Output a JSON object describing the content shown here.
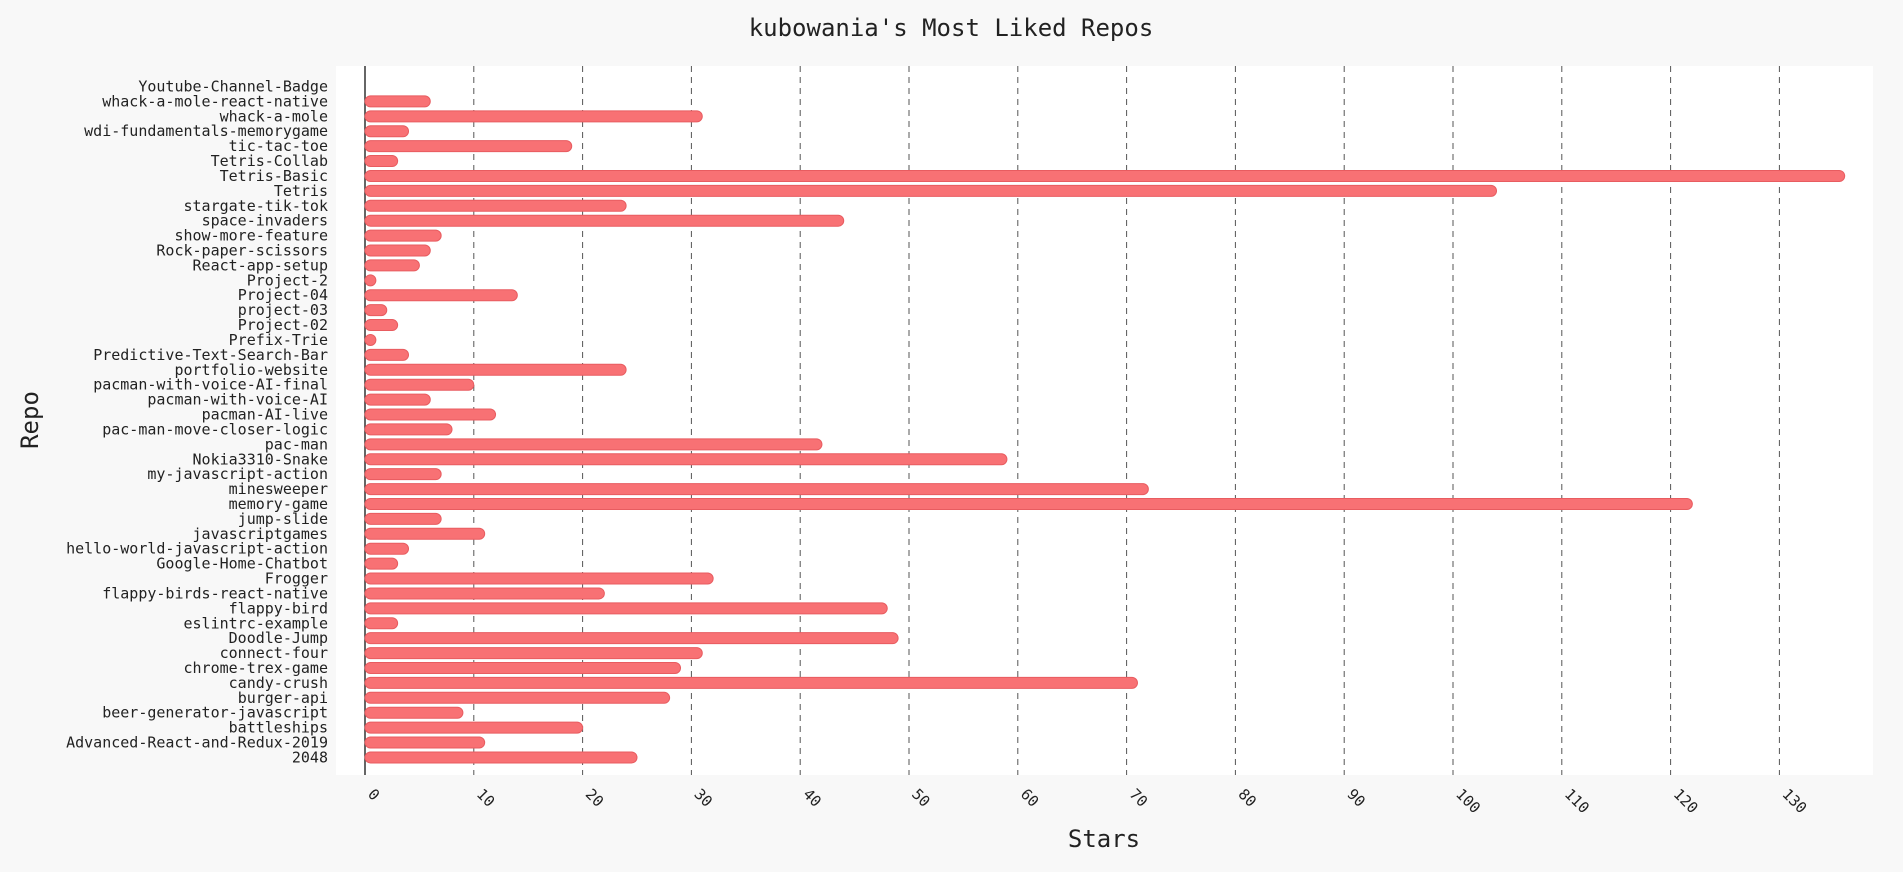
{
  "chart_data": {
    "type": "bar",
    "orientation": "horizontal",
    "title": "kubowania's Most Liked Repos",
    "xlabel": "Stars",
    "ylabel": "Repo",
    "xlim": [
      0,
      136
    ],
    "xticks": [
      0,
      10,
      20,
      30,
      40,
      50,
      60,
      70,
      80,
      90,
      100,
      110,
      120,
      130
    ],
    "grid": "vertical dashed",
    "bar_color": "#f87174",
    "bar_edge_color": "#e85c60",
    "plot_background": "#ffffff",
    "page_background": "#f8f8f8",
    "categories": [
      "Youtube-Channel-Badge",
      "whack-a-mole-react-native",
      "whack-a-mole",
      "wdi-fundamentals-memorygame",
      "tic-tac-toe",
      "Tetris-Collab",
      "Tetris-Basic",
      "Tetris",
      "stargate-tik-tok",
      "space-invaders",
      "show-more-feature",
      "Rock-paper-scissors",
      "React-app-setup",
      "Project-2",
      "Project-04",
      "project-03",
      "Project-02",
      "Prefix-Trie",
      "Predictive-Text-Search-Bar",
      "portfolio-website",
      "pacman-with-voice-AI-final",
      "pacman-with-voice-AI",
      "pacman-AI-live",
      "pac-man-move-closer-logic",
      "pac-man",
      "Nokia3310-Snake",
      "my-javascript-action",
      "minesweeper",
      "memory-game",
      "jump-slide",
      "javascriptgames",
      "hello-world-javascript-action",
      "Google-Home-Chatbot",
      "Frogger",
      "flappy-birds-react-native",
      "flappy-bird",
      "eslintrc-example",
      "Doodle-Jump",
      "connect-four",
      "chrome-trex-game",
      "candy-crush",
      "burger-api",
      "beer-generator-javascript",
      "battleships",
      "Advanced-React-and-Redux-2019",
      "2048"
    ],
    "values": [
      0,
      6,
      31,
      4,
      19,
      3,
      136,
      104,
      24,
      44,
      7,
      6,
      5,
      1,
      14,
      2,
      3,
      1,
      4,
      24,
      10,
      6,
      12,
      8,
      42,
      59,
      7,
      72,
      122,
      7,
      11,
      4,
      3,
      32,
      22,
      48,
      3,
      49,
      31,
      29,
      71,
      28,
      9,
      20,
      11,
      25
    ]
  }
}
